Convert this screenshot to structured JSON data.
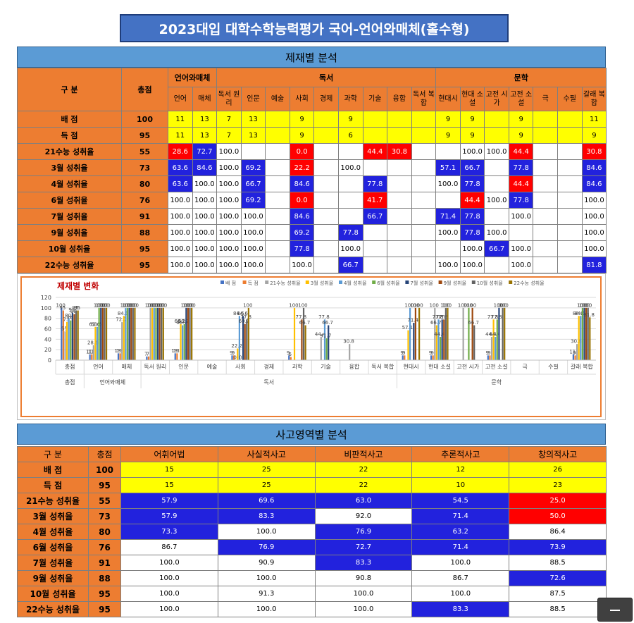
{
  "page_title": "2023대입 대학수학능력평가 국어-언어와매체(홀수형)",
  "section1_title": "제재별 분석",
  "section2_title": "사고영역별 분석",
  "t1": {
    "gubun": "구 분",
    "total": "총점",
    "groups": [
      "언어와매체",
      "독서",
      "문학"
    ],
    "cols": [
      "언어",
      "매체",
      "독서\n원리",
      "인문",
      "예술",
      "사회",
      "경제",
      "과학",
      "기술",
      "융합",
      "독서\n복합",
      "현대시",
      "현대\n소설",
      "고전\n시가",
      "고전\n소설",
      "극",
      "수필",
      "갈래\n복합"
    ],
    "rows": [
      {
        "label": "배 점",
        "total": "100",
        "cells": [
          "11",
          "13",
          "7",
          "13",
          "",
          "9",
          "",
          "9",
          "",
          "",
          "",
          "9",
          "9",
          "",
          "9",
          "",
          "",
          "11"
        ],
        "colors": [
          "y",
          "y",
          "y",
          "y",
          "y",
          "y",
          "y",
          "y",
          "y",
          "y",
          "y",
          "y",
          "y",
          "y",
          "y",
          "y",
          "y",
          "y"
        ]
      },
      {
        "label": "득 점",
        "total": "95",
        "cells": [
          "11",
          "13",
          "7",
          "13",
          "",
          "9",
          "",
          "6",
          "",
          "",
          "",
          "9",
          "9",
          "",
          "9",
          "",
          "",
          "9"
        ],
        "colors": [
          "y",
          "y",
          "y",
          "y",
          "y",
          "y",
          "y",
          "y",
          "y",
          "y",
          "y",
          "y",
          "y",
          "y",
          "y",
          "y",
          "y",
          "y"
        ]
      },
      {
        "label": "21수능 성취율",
        "total": "55",
        "cells": [
          "28.6",
          "72.7",
          "100.0",
          "",
          "",
          "0.0",
          "",
          "",
          "44.4",
          "30.8",
          "",
          "",
          "100.0",
          "100.0",
          "44.4",
          "",
          "",
          "30.8"
        ],
        "colors": [
          "r",
          "b",
          "w",
          "w",
          "w",
          "r",
          "w",
          "w",
          "r",
          "r",
          "w",
          "w",
          "w",
          "w",
          "r",
          "w",
          "w",
          "r"
        ]
      },
      {
        "label": "3월 성취율",
        "total": "73",
        "cells": [
          "63.6",
          "84.6",
          "100.0",
          "69.2",
          "",
          "22.2",
          "",
          "100.0",
          "",
          "",
          "",
          "57.1",
          "66.7",
          "",
          "77.8",
          "",
          "",
          "84.6"
        ],
        "colors": [
          "b",
          "b",
          "w",
          "b",
          "w",
          "r",
          "w",
          "w",
          "w",
          "w",
          "w",
          "b",
          "b",
          "w",
          "b",
          "w",
          "w",
          "b"
        ]
      },
      {
        "label": "4월 성취율",
        "total": "80",
        "cells": [
          "63.6",
          "100.0",
          "100.0",
          "66.7",
          "",
          "84.6",
          "",
          "",
          "77.8",
          "",
          "",
          "100.0",
          "77.8",
          "",
          "44.4",
          "",
          "",
          "84.6"
        ],
        "colors": [
          "b",
          "w",
          "w",
          "b",
          "w",
          "b",
          "w",
          "w",
          "b",
          "w",
          "w",
          "w",
          "b",
          "w",
          "r",
          "w",
          "w",
          "b"
        ]
      },
      {
        "label": "6월 성취율",
        "total": "76",
        "cells": [
          "100.0",
          "100.0",
          "100.0",
          "69.2",
          "",
          "0.0",
          "",
          "",
          "41.7",
          "",
          "",
          "",
          "44.4",
          "100.0",
          "77.8",
          "",
          "",
          "100.0"
        ],
        "colors": [
          "w",
          "w",
          "w",
          "b",
          "w",
          "r",
          "w",
          "w",
          "r",
          "w",
          "w",
          "w",
          "r",
          "w",
          "b",
          "w",
          "w",
          "w"
        ]
      },
      {
        "label": "7월 성취율",
        "total": "91",
        "cells": [
          "100.0",
          "100.0",
          "100.0",
          "100.0",
          "",
          "84.6",
          "",
          "",
          "66.7",
          "",
          "",
          "71.4",
          "77.8",
          "",
          "100.0",
          "",
          "",
          "100.0"
        ],
        "colors": [
          "w",
          "w",
          "w",
          "w",
          "w",
          "b",
          "w",
          "w",
          "b",
          "w",
          "w",
          "b",
          "b",
          "w",
          "w",
          "w",
          "w",
          "w"
        ]
      },
      {
        "label": "9월 성취율",
        "total": "88",
        "cells": [
          "100.0",
          "100.0",
          "100.0",
          "100.0",
          "",
          "69.2",
          "",
          "77.8",
          "",
          "",
          "",
          "100.0",
          "77.8",
          "100.0",
          "",
          "",
          "",
          "100.0"
        ],
        "colors": [
          "w",
          "w",
          "w",
          "w",
          "w",
          "b",
          "w",
          "b",
          "w",
          "w",
          "w",
          "w",
          "b",
          "w",
          "w",
          "w",
          "w",
          "w"
        ]
      },
      {
        "label": "10월 성취율",
        "total": "95",
        "cells": [
          "100.0",
          "100.0",
          "100.0",
          "100.0",
          "",
          "77.8",
          "",
          "100.0",
          "",
          "",
          "",
          "",
          "100.0",
          "66.7",
          "100.0",
          "",
          "",
          "100.0"
        ],
        "colors": [
          "w",
          "w",
          "w",
          "w",
          "w",
          "b",
          "w",
          "w",
          "w",
          "w",
          "w",
          "w",
          "w",
          "b",
          "w",
          "w",
          "w",
          "w"
        ]
      },
      {
        "label": "22수능 성취율",
        "total": "95",
        "cells": [
          "100.0",
          "100.0",
          "100.0",
          "100.0",
          "",
          "100.0",
          "",
          "66.7",
          "",
          "",
          "",
          "100.0",
          "100.0",
          "",
          "100.0",
          "",
          "",
          "81.8"
        ],
        "colors": [
          "w",
          "w",
          "w",
          "w",
          "w",
          "w",
          "w",
          "b",
          "w",
          "w",
          "w",
          "w",
          "w",
          "w",
          "w",
          "w",
          "w",
          "b"
        ]
      }
    ]
  },
  "chart_data": {
    "type": "bar",
    "title": "제재별 변화",
    "ylim": [
      0,
      120
    ],
    "yticks": [
      "0",
      "20",
      "40",
      "60",
      "80",
      "100",
      "120"
    ],
    "legend_position": "top",
    "categories": [
      "총점",
      "언어",
      "매체",
      "독서 원리",
      "인문",
      "예술",
      "사회",
      "경제",
      "과학",
      "기술",
      "융합",
      "독서 복합",
      "현대시",
      "현대 소설",
      "고전 시가",
      "고전 소설",
      "극",
      "수필",
      "갈래 복합"
    ],
    "group_labels": [
      {
        "label": "언어와매체",
        "from": 1,
        "to": 2
      },
      {
        "label": "독서",
        "from": 3,
        "to": 11
      },
      {
        "label": "문학",
        "from": 12,
        "to": 18
      }
    ],
    "colors": [
      "#4472c4",
      "#ed7d31",
      "#a5a5a5",
      "#ffc000",
      "#5b9bd5",
      "#70ad47",
      "#264478",
      "#9e480e",
      "#636363",
      "#997300"
    ],
    "series": [
      {
        "name": "배 점",
        "values": [
          100,
          11,
          13,
          7,
          13,
          null,
          9,
          null,
          9,
          null,
          null,
          null,
          9,
          9,
          null,
          9,
          null,
          null,
          11
        ]
      },
      {
        "name": "득 점",
        "values": [
          95,
          11,
          13,
          7,
          13,
          null,
          9,
          null,
          6,
          null,
          null,
          null,
          9,
          9,
          null,
          9,
          null,
          null,
          9
        ]
      },
      {
        "name": "21수능 성취율",
        "values": [
          55,
          28.6,
          72.7,
          100,
          null,
          null,
          0,
          null,
          null,
          44.4,
          30.8,
          null,
          null,
          100,
          100,
          44.4,
          null,
          null,
          30.8
        ]
      },
      {
        "name": "3월 성취율",
        "values": [
          73,
          63.6,
          84.6,
          100,
          69.2,
          null,
          22.2,
          null,
          100,
          null,
          null,
          null,
          57.1,
          66.7,
          null,
          77.8,
          null,
          null,
          84.6
        ]
      },
      {
        "name": "4월 성취율",
        "values": [
          80,
          63.6,
          100,
          100,
          66.7,
          null,
          84.6,
          null,
          null,
          77.8,
          null,
          null,
          100,
          77.8,
          null,
          44.4,
          null,
          null,
          84.6
        ]
      },
      {
        "name": "6월 성취율",
        "values": [
          76,
          100,
          100,
          100,
          69.2,
          null,
          0,
          null,
          null,
          41.7,
          null,
          null,
          null,
          44.4,
          100,
          77.8,
          null,
          null,
          100
        ]
      },
      {
        "name": "7월 성취율",
        "values": [
          91,
          100,
          100,
          100,
          100,
          null,
          84.6,
          null,
          null,
          66.7,
          null,
          null,
          71.4,
          77.8,
          null,
          100,
          null,
          null,
          100
        ]
      },
      {
        "name": "9월 성취율",
        "values": [
          88,
          100,
          100,
          100,
          100,
          null,
          69.2,
          null,
          77.8,
          null,
          null,
          null,
          100,
          77.8,
          100,
          null,
          null,
          null,
          100
        ]
      },
      {
        "name": "10월 성취율",
        "values": [
          95,
          100,
          100,
          100,
          100,
          null,
          77.8,
          null,
          100,
          null,
          null,
          null,
          null,
          100,
          66.7,
          100,
          null,
          null,
          100
        ]
      },
      {
        "name": "22수능 성취율",
        "values": [
          95,
          100,
          100,
          100,
          100,
          null,
          100,
          null,
          66.7,
          null,
          null,
          null,
          100,
          100,
          null,
          100,
          null,
          null,
          81.8
        ]
      }
    ]
  },
  "t2": {
    "gubun": "구 분",
    "total": "총점",
    "cols": [
      "어휘어법",
      "사실적사고",
      "비판적사고",
      "추론적사고",
      "창의적사고"
    ],
    "rows": [
      {
        "label": "배 점",
        "total": "100",
        "cells": [
          "15",
          "25",
          "22",
          "12",
          "26"
        ],
        "colors": [
          "y",
          "y",
          "y",
          "y",
          "y"
        ]
      },
      {
        "label": "득 점",
        "total": "95",
        "cells": [
          "15",
          "25",
          "22",
          "10",
          "23"
        ],
        "colors": [
          "y",
          "y",
          "y",
          "y",
          "y"
        ]
      },
      {
        "label": "21수능 성취율",
        "total": "55",
        "cells": [
          "57.9",
          "69.6",
          "63.0",
          "54.5",
          "25.0"
        ],
        "colors": [
          "b",
          "b",
          "b",
          "b",
          "r"
        ]
      },
      {
        "label": "3월 성취율",
        "total": "73",
        "cells": [
          "57.9",
          "83.3",
          "92.0",
          "71.4",
          "50.0"
        ],
        "colors": [
          "b",
          "b",
          "w",
          "b",
          "r"
        ]
      },
      {
        "label": "4월 성취율",
        "total": "80",
        "cells": [
          "73.3",
          "100.0",
          "76.9",
          "63.2",
          "86.4"
        ],
        "colors": [
          "b",
          "w",
          "b",
          "b",
          "w"
        ]
      },
      {
        "label": "6월 성취율",
        "total": "76",
        "cells": [
          "86.7",
          "76.9",
          "72.7",
          "71.4",
          "73.9"
        ],
        "colors": [
          "w",
          "b",
          "b",
          "b",
          "b"
        ]
      },
      {
        "label": "7월 성취율",
        "total": "91",
        "cells": [
          "100.0",
          "90.9",
          "83.3",
          "100.0",
          "88.5"
        ],
        "colors": [
          "w",
          "w",
          "b",
          "w",
          "w"
        ]
      },
      {
        "label": "9월 성취율",
        "total": "88",
        "cells": [
          "100.0",
          "100.0",
          "90.8",
          "86.7",
          "72.6"
        ],
        "colors": [
          "w",
          "w",
          "w",
          "w",
          "b"
        ]
      },
      {
        "label": "10월 성취율",
        "total": "95",
        "cells": [
          "100.0",
          "91.3",
          "100.0",
          "100.0",
          "87.5"
        ],
        "colors": [
          "w",
          "w",
          "w",
          "w",
          "w"
        ]
      },
      {
        "label": "22수능 성취율",
        "total": "95",
        "cells": [
          "100.0",
          "100.0",
          "100.0",
          "83.3",
          "88.5"
        ],
        "colors": [
          "w",
          "w",
          "w",
          "b",
          "w"
        ]
      }
    ]
  }
}
